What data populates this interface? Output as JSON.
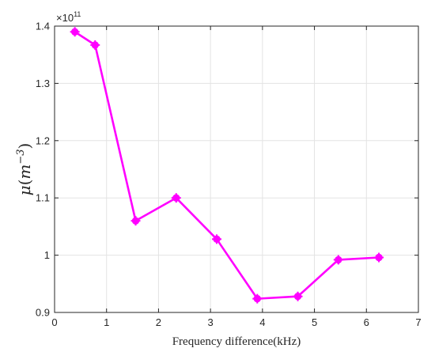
{
  "chart_data": {
    "type": "line",
    "title": "",
    "xlabel": "Frequency difference(kHz)",
    "ylabel": {
      "symbol": "μ",
      "unit_base": "m",
      "unit_exponent": "−3"
    },
    "y_multiplier": {
      "base": "×10",
      "exponent": "11"
    },
    "xlim": [
      0,
      7
    ],
    "ylim": [
      0.9,
      1.4
    ],
    "x_ticks": [
      0,
      1,
      2,
      3,
      4,
      5,
      6,
      7
    ],
    "x_tick_labels": [
      "0",
      "1",
      "2",
      "3",
      "4",
      "5",
      "6",
      "7"
    ],
    "y_ticks": [
      0.9,
      1.0,
      1.1,
      1.2,
      1.3,
      1.4
    ],
    "y_tick_labels": [
      "0.9",
      "1",
      "1.1",
      "1.2",
      "1.3",
      "1.4"
    ],
    "grid": true,
    "series": [
      {
        "color": "#ff00ff",
        "marker": "circle",
        "x": [
          0.39,
          0.78,
          1.56,
          2.34,
          3.12,
          3.9,
          4.68,
          5.46,
          6.24
        ],
        "y": [
          1.39,
          1.367,
          1.06,
          1.1,
          1.028,
          0.924,
          0.928,
          0.992,
          0.996
        ]
      }
    ]
  }
}
